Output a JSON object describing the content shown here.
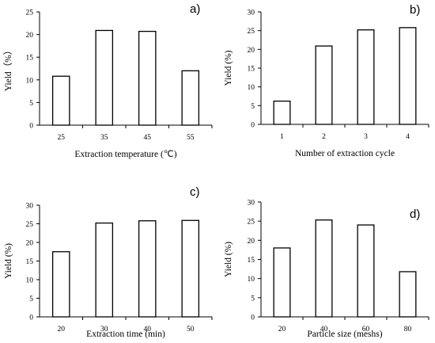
{
  "chart_data": [
    {
      "type": "bar",
      "panel_label": "a)",
      "categories": [
        "25",
        "35",
        "45",
        "55"
      ],
      "values": [
        10.8,
        20.9,
        20.7,
        12.0
      ],
      "xlabel": "Extraction temperature (℃)",
      "ylabel": "Yield（%）",
      "ylim": [
        0,
        25
      ],
      "yticks": [
        "0",
        "5",
        "10",
        "15",
        "20",
        "25"
      ],
      "grid": false
    },
    {
      "type": "bar",
      "panel_label": "b)",
      "categories": [
        "1",
        "2",
        "3",
        "4"
      ],
      "values": [
        6.2,
        20.9,
        25.2,
        25.8
      ],
      "xlabel": "Number of extraction cycle",
      "ylabel": "Yield (%)",
      "ylim": [
        0,
        30
      ],
      "yticks": [
        "0",
        "5",
        "10",
        "15",
        "20",
        "25",
        "30"
      ],
      "grid": false
    },
    {
      "type": "bar",
      "panel_label": "c)",
      "categories": [
        "20",
        "30",
        "40",
        "50"
      ],
      "values": [
        17.5,
        25.2,
        25.8,
        25.9
      ],
      "xlabel": "Extraction time (min)",
      "ylabel": "Yield (%)",
      "ylim": [
        0,
        30
      ],
      "yticks": [
        "0",
        "5",
        "10",
        "15",
        "20",
        "25",
        "30"
      ],
      "grid": false
    },
    {
      "type": "bar",
      "panel_label": "d)",
      "categories": [
        "20",
        "40",
        "60",
        "80"
      ],
      "values": [
        18.0,
        25.3,
        24.0,
        11.8
      ],
      "xlabel": "Particle size  (meshs)",
      "ylabel": "Yield (%)",
      "ylim": [
        0,
        30
      ],
      "yticks": [
        "0",
        "5",
        "10",
        "15",
        "20",
        "25",
        "30"
      ],
      "grid": false
    }
  ]
}
